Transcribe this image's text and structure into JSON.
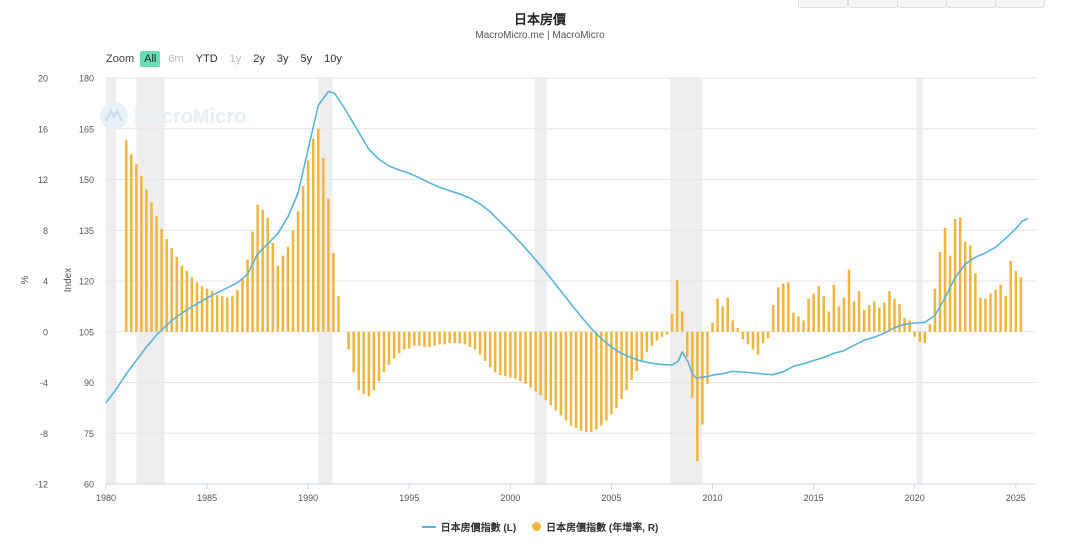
{
  "header": {
    "title": "日本房價",
    "subtitle": "MacroMicro.me | MacroMicro"
  },
  "zoom": {
    "label": "Zoom",
    "options": [
      {
        "label": "All",
        "state": "active"
      },
      {
        "label": "6m",
        "state": "disabled"
      },
      {
        "label": "YTD",
        "state": "normal"
      },
      {
        "label": "1y",
        "state": "disabled"
      },
      {
        "label": "2y",
        "state": "normal"
      },
      {
        "label": "3y",
        "state": "normal"
      },
      {
        "label": "5y",
        "state": "normal"
      },
      {
        "label": "10y",
        "state": "normal"
      }
    ]
  },
  "watermark": "MacroMicro",
  "chart_data": {
    "type": "line+bar",
    "title": "日本房價",
    "subtitle": "MacroMicro.me | MacroMicro",
    "xlim": [
      1980,
      2026
    ],
    "x_ticks": [
      1980,
      1985,
      1990,
      1995,
      2000,
      2005,
      2010,
      2015,
      2020,
      2025
    ],
    "left_axis": {
      "label": "%",
      "ticks": [
        -12,
        -8,
        -4,
        0,
        4,
        8,
        12,
        16,
        20
      ],
      "range": [
        -12,
        20
      ]
    },
    "right_axis": {
      "label": "Index",
      "ticks": [
        60,
        75,
        90,
        105,
        120,
        135,
        150,
        165,
        180
      ],
      "range": [
        60,
        180
      ]
    },
    "colors": {
      "line": "#5bb3d9",
      "bars": "#f0b53c",
      "recession": "#eeeeee"
    },
    "recession_bands": [
      [
        1980.0,
        1980.5
      ],
      [
        1981.5,
        1982.9
      ],
      [
        1990.5,
        1991.2
      ],
      [
        2001.2,
        2001.8
      ],
      [
        2007.9,
        2009.5
      ],
      [
        2020.1,
        2020.4
      ]
    ],
    "series": [
      {
        "name": "日本房價指數 (L)",
        "axis": "right",
        "type": "line",
        "points": [
          [
            1980.0,
            84
          ],
          [
            1980.5,
            88
          ],
          [
            1981.0,
            92.5
          ],
          [
            1981.5,
            96.5
          ],
          [
            1982.0,
            100.5
          ],
          [
            1982.5,
            104
          ],
          [
            1983.0,
            107
          ],
          [
            1983.5,
            109.5
          ],
          [
            1984.0,
            111.5
          ],
          [
            1984.5,
            113.3
          ],
          [
            1985.0,
            115
          ],
          [
            1985.5,
            116.5
          ],
          [
            1986.0,
            118
          ],
          [
            1986.5,
            119.5
          ],
          [
            1987.0,
            122
          ],
          [
            1987.5,
            128
          ],
          [
            1988.0,
            131
          ],
          [
            1988.5,
            134
          ],
          [
            1989.0,
            139
          ],
          [
            1989.5,
            146
          ],
          [
            1990.0,
            159
          ],
          [
            1990.5,
            172
          ],
          [
            1991.0,
            176
          ],
          [
            1991.3,
            175.5
          ],
          [
            1991.8,
            171
          ],
          [
            1992.3,
            166
          ],
          [
            1993.0,
            159
          ],
          [
            1993.5,
            156
          ],
          [
            1994.0,
            154
          ],
          [
            1994.5,
            152.8
          ],
          [
            1995.0,
            151.8
          ],
          [
            1995.5,
            150.5
          ],
          [
            1996.0,
            149
          ],
          [
            1996.5,
            147.7
          ],
          [
            1997.0,
            146.7
          ],
          [
            1997.5,
            145.7
          ],
          [
            1998.0,
            144.5
          ],
          [
            1998.5,
            142.8
          ],
          [
            1999.0,
            140.5
          ],
          [
            1999.5,
            137.5
          ],
          [
            2000.0,
            134.5
          ],
          [
            2000.5,
            131.3
          ],
          [
            2001.0,
            128
          ],
          [
            2001.5,
            124.5
          ],
          [
            2002.0,
            120.8
          ],
          [
            2002.5,
            117
          ],
          [
            2003.0,
            113.2
          ],
          [
            2003.5,
            109.5
          ],
          [
            2004.0,
            106
          ],
          [
            2004.5,
            103
          ],
          [
            2005.0,
            100.5
          ],
          [
            2005.5,
            98.6
          ],
          [
            2006.0,
            97.3
          ],
          [
            2006.5,
            96.3
          ],
          [
            2007.0,
            95.7
          ],
          [
            2007.5,
            95.3
          ],
          [
            2008.0,
            95.2
          ],
          [
            2008.3,
            96.3
          ],
          [
            2008.5,
            99
          ],
          [
            2008.8,
            96
          ],
          [
            2009.0,
            92.5
          ],
          [
            2009.2,
            91.3
          ],
          [
            2009.5,
            91.6
          ],
          [
            2009.8,
            91.8
          ],
          [
            2010.0,
            92.2
          ],
          [
            2010.5,
            92.6
          ],
          [
            2011.0,
            93.3
          ],
          [
            2011.5,
            93.1
          ],
          [
            2012.0,
            92.8
          ],
          [
            2012.5,
            92.5
          ],
          [
            2013.0,
            92.3
          ],
          [
            2013.5,
            93.2
          ],
          [
            2014.0,
            94.8
          ],
          [
            2014.5,
            95.5
          ],
          [
            2015.0,
            96.5
          ],
          [
            2015.5,
            97.4
          ],
          [
            2016.0,
            98.6
          ],
          [
            2016.5,
            99.4
          ],
          [
            2017.0,
            101
          ],
          [
            2017.5,
            102.5
          ],
          [
            2018.0,
            103.4
          ],
          [
            2018.5,
            104.6
          ],
          [
            2019.0,
            106.2
          ],
          [
            2019.5,
            107.2
          ],
          [
            2020.0,
            107.6
          ],
          [
            2020.5,
            107.8
          ],
          [
            2021.0,
            109.8
          ],
          [
            2021.5,
            115
          ],
          [
            2022.0,
            121
          ],
          [
            2022.5,
            125
          ],
          [
            2023.0,
            127
          ],
          [
            2023.5,
            128.3
          ],
          [
            2024.0,
            130
          ],
          [
            2024.5,
            132.6
          ],
          [
            2025.0,
            135.5
          ],
          [
            2025.3,
            137.6
          ],
          [
            2025.6,
            138.5
          ]
        ]
      },
      {
        "name": "日本房價指數 (年增率, R)",
        "axis": "left",
        "type": "bar",
        "points": [
          [
            1981.0,
            15.1
          ],
          [
            1981.25,
            14.0
          ],
          [
            1981.5,
            13.2
          ],
          [
            1981.75,
            12.3
          ],
          [
            1982.0,
            11.2
          ],
          [
            1982.25,
            10.2
          ],
          [
            1982.5,
            9.1
          ],
          [
            1982.75,
            8.1
          ],
          [
            1983.0,
            7.3
          ],
          [
            1983.25,
            6.6
          ],
          [
            1983.5,
            5.9
          ],
          [
            1983.75,
            5.2
          ],
          [
            1984.0,
            4.8
          ],
          [
            1984.25,
            4.3
          ],
          [
            1984.5,
            3.9
          ],
          [
            1984.75,
            3.6
          ],
          [
            1985.0,
            3.4
          ],
          [
            1985.25,
            3.2
          ],
          [
            1985.5,
            2.9
          ],
          [
            1985.75,
            2.8
          ],
          [
            1986.0,
            2.7
          ],
          [
            1986.25,
            2.8
          ],
          [
            1986.5,
            3.3
          ],
          [
            1986.75,
            4.2
          ],
          [
            1987.0,
            5.7
          ],
          [
            1987.25,
            7.9
          ],
          [
            1987.5,
            10.0
          ],
          [
            1987.75,
            9.6
          ],
          [
            1988.0,
            9.0
          ],
          [
            1988.25,
            7.0
          ],
          [
            1988.5,
            5.2
          ],
          [
            1988.75,
            6.0
          ],
          [
            1989.0,
            6.7
          ],
          [
            1989.25,
            8.0
          ],
          [
            1989.5,
            9.5
          ],
          [
            1989.75,
            11.5
          ],
          [
            1990.0,
            13.5
          ],
          [
            1990.25,
            15.2
          ],
          [
            1990.5,
            16.0
          ],
          [
            1990.75,
            13.7
          ],
          [
            1991.0,
            10.5
          ],
          [
            1991.25,
            6.2
          ],
          [
            1991.5,
            2.8
          ],
          [
            1992.0,
            -1.4
          ],
          [
            1992.25,
            -3.2
          ],
          [
            1992.5,
            -4.6
          ],
          [
            1992.75,
            -4.9
          ],
          [
            1993.0,
            -5.1
          ],
          [
            1993.25,
            -4.6
          ],
          [
            1993.5,
            -3.9
          ],
          [
            1993.75,
            -3.2
          ],
          [
            1994.0,
            -2.6
          ],
          [
            1994.25,
            -2.1
          ],
          [
            1994.5,
            -1.7
          ],
          [
            1994.75,
            -1.4
          ],
          [
            1995.0,
            -1.3
          ],
          [
            1995.25,
            -1.1
          ],
          [
            1995.5,
            -1.1
          ],
          [
            1995.75,
            -1.2
          ],
          [
            1996.0,
            -1.2
          ],
          [
            1996.25,
            -1.1
          ],
          [
            1996.5,
            -1.0
          ],
          [
            1996.75,
            -1.0
          ],
          [
            1997.0,
            -0.9
          ],
          [
            1997.25,
            -0.9
          ],
          [
            1997.5,
            -0.9
          ],
          [
            1997.75,
            -1.0
          ],
          [
            1998.0,
            -1.2
          ],
          [
            1998.25,
            -1.4
          ],
          [
            1998.5,
            -1.8
          ],
          [
            1998.75,
            -2.3
          ],
          [
            1999.0,
            -2.8
          ],
          [
            1999.25,
            -3.2
          ],
          [
            1999.5,
            -3.4
          ],
          [
            1999.75,
            -3.5
          ],
          [
            2000.0,
            -3.6
          ],
          [
            2000.25,
            -3.7
          ],
          [
            2000.5,
            -3.9
          ],
          [
            2000.75,
            -4.1
          ],
          [
            2001.0,
            -4.4
          ],
          [
            2001.25,
            -4.7
          ],
          [
            2001.5,
            -5.0
          ],
          [
            2001.75,
            -5.4
          ],
          [
            2002.0,
            -5.8
          ],
          [
            2002.25,
            -6.2
          ],
          [
            2002.5,
            -6.6
          ],
          [
            2002.75,
            -7.0
          ],
          [
            2003.0,
            -7.4
          ],
          [
            2003.25,
            -7.6
          ],
          [
            2003.5,
            -7.8
          ],
          [
            2003.75,
            -7.9
          ],
          [
            2004.0,
            -7.9
          ],
          [
            2004.25,
            -7.7
          ],
          [
            2004.5,
            -7.4
          ],
          [
            2004.75,
            -7.0
          ],
          [
            2005.0,
            -6.5
          ],
          [
            2005.25,
            -6.0
          ],
          [
            2005.5,
            -5.3
          ],
          [
            2005.75,
            -4.6
          ],
          [
            2006.0,
            -3.8
          ],
          [
            2006.25,
            -3.1
          ],
          [
            2006.5,
            -2.3
          ],
          [
            2006.75,
            -1.6
          ],
          [
            2007.0,
            -1.1
          ],
          [
            2007.25,
            -0.7
          ],
          [
            2007.5,
            -0.4
          ],
          [
            2007.75,
            -0.2
          ],
          [
            2008.0,
            1.4
          ],
          [
            2008.25,
            4.1
          ],
          [
            2008.5,
            1.6
          ],
          [
            2008.75,
            -2.0
          ],
          [
            2009.0,
            -5.2
          ],
          [
            2009.25,
            -10.2
          ],
          [
            2009.5,
            -7.3
          ],
          [
            2009.75,
            -4.1
          ],
          [
            2010.0,
            0.7
          ],
          [
            2010.25,
            2.6
          ],
          [
            2010.5,
            2.0
          ],
          [
            2010.75,
            2.7
          ],
          [
            2011.0,
            0.9
          ],
          [
            2011.25,
            0.3
          ],
          [
            2011.5,
            -0.6
          ],
          [
            2011.75,
            -1.0
          ],
          [
            2012.0,
            -1.4
          ],
          [
            2012.25,
            -1.8
          ],
          [
            2012.5,
            -0.9
          ],
          [
            2012.75,
            -0.5
          ],
          [
            2013.0,
            2.1
          ],
          [
            2013.25,
            3.5
          ],
          [
            2013.5,
            3.8
          ],
          [
            2013.75,
            3.9
          ],
          [
            2014.0,
            1.5
          ],
          [
            2014.25,
            1.2
          ],
          [
            2014.5,
            0.9
          ],
          [
            2014.75,
            2.6
          ],
          [
            2015.0,
            3.0
          ],
          [
            2015.25,
            3.6
          ],
          [
            2015.5,
            2.8
          ],
          [
            2015.75,
            1.6
          ],
          [
            2016.0,
            3.7
          ],
          [
            2016.25,
            2.0
          ],
          [
            2016.5,
            2.7
          ],
          [
            2016.75,
            4.9
          ],
          [
            2017.0,
            2.4
          ],
          [
            2017.25,
            3.2
          ],
          [
            2017.5,
            1.7
          ],
          [
            2017.75,
            2.1
          ],
          [
            2018.0,
            2.4
          ],
          [
            2018.25,
            1.9
          ],
          [
            2018.5,
            2.3
          ],
          [
            2018.75,
            3.2
          ],
          [
            2019.0,
            2.6
          ],
          [
            2019.25,
            2.2
          ],
          [
            2019.5,
            1.1
          ],
          [
            2019.75,
            0.9
          ],
          [
            2020.0,
            -0.4
          ],
          [
            2020.25,
            -0.8
          ],
          [
            2020.5,
            -0.9
          ],
          [
            2020.75,
            0.6
          ],
          [
            2021.0,
            3.4
          ],
          [
            2021.25,
            6.3
          ],
          [
            2021.5,
            8.2
          ],
          [
            2021.75,
            6.0
          ],
          [
            2022.0,
            8.9
          ],
          [
            2022.25,
            9.0
          ],
          [
            2022.5,
            7.1
          ],
          [
            2022.75,
            6.8
          ],
          [
            2023.0,
            4.6
          ],
          [
            2023.25,
            2.7
          ],
          [
            2023.5,
            2.6
          ],
          [
            2023.75,
            3.0
          ],
          [
            2024.0,
            3.3
          ],
          [
            2024.25,
            3.7
          ],
          [
            2024.5,
            2.8
          ],
          [
            2024.75,
            5.6
          ],
          [
            2025.0,
            4.8
          ],
          [
            2025.25,
            4.3
          ]
        ]
      }
    ],
    "legend_position": "bottom-center"
  }
}
